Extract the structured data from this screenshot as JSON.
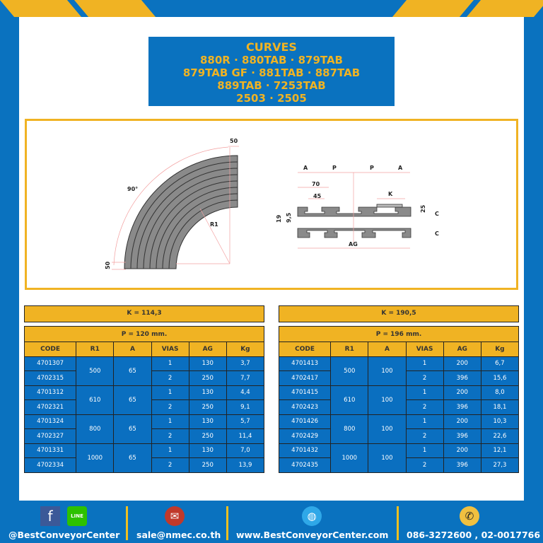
{
  "header": {
    "lines": [
      "CURVES",
      "880R · 880TAB · 879TAB",
      "879TAB GF · 881TAB · 887TAB",
      "889TAB · 7253TAB",
      "2503 · 2505"
    ]
  },
  "diagram": {
    "labels": {
      "top_width": "50",
      "angle": "90°",
      "radius": "R1",
      "bottom_width": "50",
      "a1": "A",
      "p1": "P",
      "p2": "P",
      "a2": "A",
      "d70": "70",
      "d45": "45",
      "k": "K",
      "d19": "19",
      "d95": "9,5",
      "d25": "25",
      "c1": "C",
      "c2": "C",
      "ag": "AG"
    }
  },
  "columns": [
    "CODE",
    "R1",
    "A",
    "VIAS",
    "AG",
    "Kg"
  ],
  "tables": [
    {
      "k": "K = 114,3",
      "p": "P = 120 mm.",
      "groups": [
        {
          "r1": "500",
          "a": "65",
          "rows": [
            [
              "4701307",
              "1",
              "130",
              "3,7"
            ],
            [
              "4702315",
              "2",
              "250",
              "7,7"
            ]
          ]
        },
        {
          "r1": "610",
          "a": "65",
          "rows": [
            [
              "4701312",
              "1",
              "130",
              "4,4"
            ],
            [
              "4702321",
              "2",
              "250",
              "9,1"
            ]
          ]
        },
        {
          "r1": "800",
          "a": "65",
          "rows": [
            [
              "4701324",
              "1",
              "130",
              "5,7"
            ],
            [
              "4702327",
              "2",
              "250",
              "11,4"
            ]
          ]
        },
        {
          "r1": "1000",
          "a": "65",
          "rows": [
            [
              "4701331",
              "1",
              "130",
              "7,0"
            ],
            [
              "4702334",
              "2",
              "250",
              "13,9"
            ]
          ]
        }
      ]
    },
    {
      "k": "K = 190,5",
      "p": "P = 196 mm.",
      "groups": [
        {
          "r1": "500",
          "a": "100",
          "rows": [
            [
              "4701413",
              "1",
              "200",
              "6,7"
            ],
            [
              "4702417",
              "2",
              "396",
              "15,6"
            ]
          ]
        },
        {
          "r1": "610",
          "a": "100",
          "rows": [
            [
              "4701415",
              "1",
              "200",
              "8,0"
            ],
            [
              "4702423",
              "2",
              "396",
              "18,1"
            ]
          ]
        },
        {
          "r1": "800",
          "a": "100",
          "rows": [
            [
              "4701426",
              "1",
              "200",
              "10,3"
            ],
            [
              "4702429",
              "2",
              "396",
              "22,6"
            ]
          ]
        },
        {
          "r1": "1000",
          "a": "100",
          "rows": [
            [
              "4701432",
              "1",
              "200",
              "12,1"
            ],
            [
              "4702435",
              "2",
              "396",
              "27,3"
            ]
          ]
        }
      ]
    }
  ],
  "footer": {
    "social": "@BestConveyorCenter",
    "line_badge": "LINE",
    "email": "sale@nmec.co.th",
    "website": "www.BestConveyorCenter.com",
    "phone": "086-3272600 , 02-0017766"
  },
  "colors": {
    "blue": "#0a72bf",
    "yellow": "#f0b323"
  },
  "icons": [
    "facebook-icon",
    "line-icon",
    "mail-icon",
    "globe-icon",
    "phone-icon"
  ]
}
